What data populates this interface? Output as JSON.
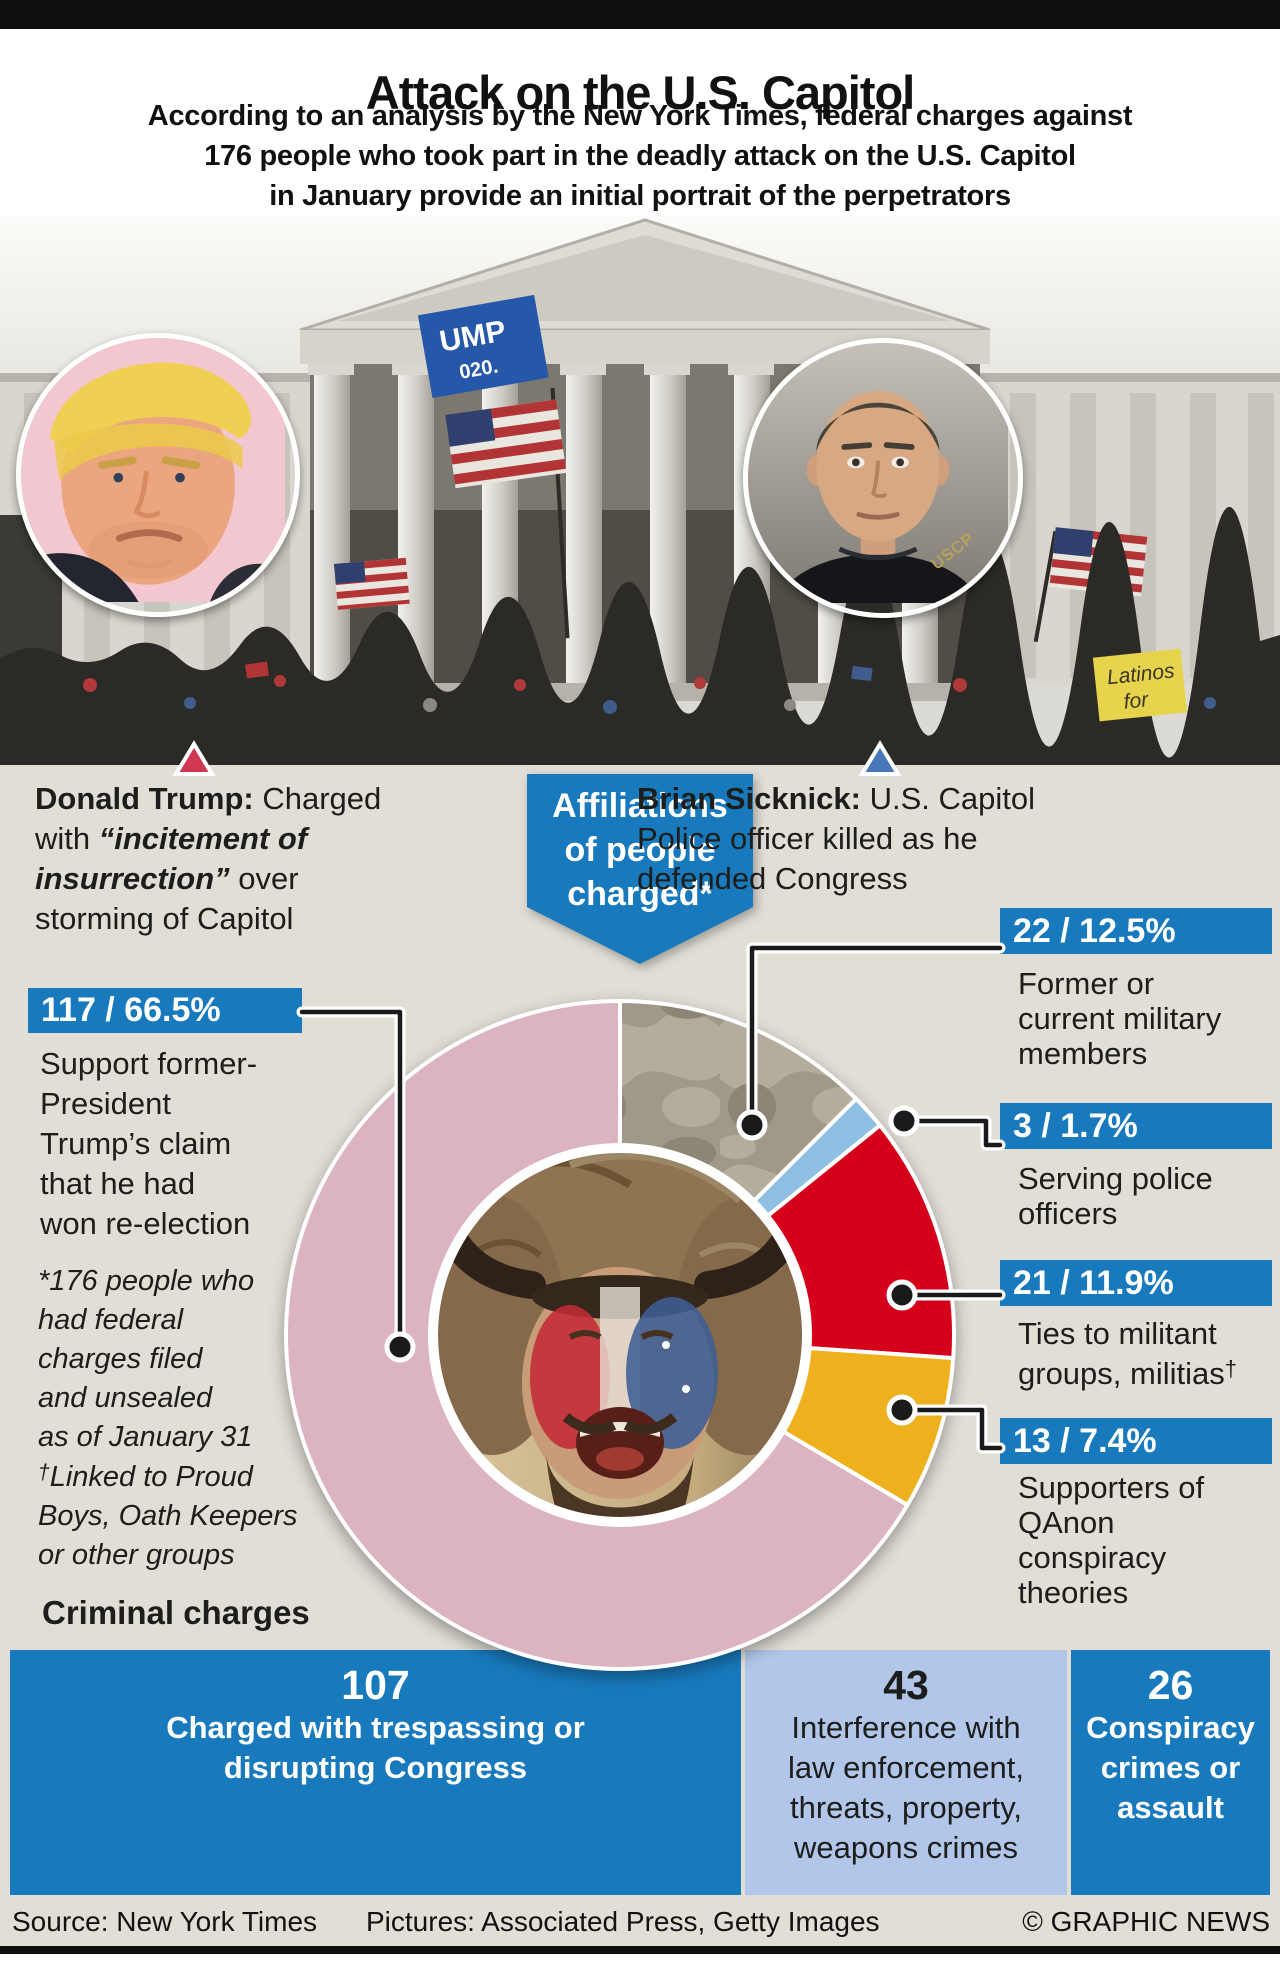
{
  "header": {
    "title": "Attack on the U.S. Capitol",
    "subtitle": "According to an analysis by the New York Times, federal charges against\n176 people who took part in the deadly attack on the U.S. Capitol\nin January provide an initial portrait of the perpetrators"
  },
  "photo": {
    "trump_flag_line1": "UMP",
    "trump_flag_line2": "020.",
    "sign_line1": "Latinos",
    "sign_line2": "for",
    "uscp_badge": "USCP"
  },
  "captions": {
    "trump_name": "Donald Trump:",
    "trump_text1": " Charged\nwith ",
    "trump_quote": "“incitement of\ninsurrection”",
    "trump_text2": " over\nstorming of Capitol",
    "sicknick_name": "Brian Sicknick:",
    "sicknick_text": " U.S. Capitol\nPolice officer killed as he\ndefended Congress"
  },
  "banner": {
    "text": "Affiliations\nof people\ncharged*"
  },
  "chart_data": {
    "type": "pie",
    "title": "Affiliations of people charged*",
    "total_people": 176,
    "legend_position": "around-chart",
    "slices": [
      {
        "id": "military",
        "count": 22,
        "pct": 12.5,
        "value_text": "22 / 12.5%",
        "label": "Former or\ncurrent military\nmembers",
        "color": "camo"
      },
      {
        "id": "police",
        "count": 3,
        "pct": 1.7,
        "value_text": "3 / 1.7%",
        "label": "Serving police\nofficers",
        "color": "#8fc0e4"
      },
      {
        "id": "militant",
        "count": 21,
        "pct": 11.9,
        "value_text": "21 / 11.9%",
        "label": "Ties to militant\ngroups, militias",
        "label_suffix": "†",
        "color": "#d50019"
      },
      {
        "id": "qanon",
        "count": 13,
        "pct": 7.4,
        "value_text": "13 / 7.4%",
        "label": "Supporters of\nQAnon\nconspiracy\ntheories",
        "color": "#eeb01c"
      },
      {
        "id": "trump_support",
        "count": 117,
        "pct": 66.5,
        "value_text": "117 / 66.5%",
        "label": "Support former-\nPresident\nTrump’s claim\nthat he had\nwon re-election",
        "color": "#dcb3c2"
      }
    ]
  },
  "footnotes": {
    "asterisk": "*176 people who\nhad federal\ncharges filed\nand unsealed\nas of January 31",
    "dagger_sym": "†",
    "dagger": "Linked to Proud\nBoys, Oath Keepers\nor other groups"
  },
  "charges": {
    "heading": "Criminal charges",
    "items": [
      {
        "count": "107",
        "label": "Charged with trespassing or\ndisrupting Congress"
      },
      {
        "count": "43",
        "label": "Interference with\nlaw enforcement,\nthreats, property,\nweapons crimes"
      },
      {
        "count": "26",
        "label": "Conspiracy\ncrimes or\nassault"
      }
    ]
  },
  "footer": {
    "source": "Source: New York Times",
    "pictures": "Pictures: Associated Press, Getty Images",
    "credit": "© GRAPHIC NEWS"
  },
  "colors": {
    "accent_blue": "#187abd",
    "light_blue_box": "#b1c6e8",
    "pink_slice": "#dcb3c2",
    "red_slice": "#d50019",
    "yellow_slice": "#eeb01c",
    "police_blue_slice": "#8fc0e4",
    "camo_base": "#a09888",
    "camo_blob": "#b4ad9d",
    "background": "#e1ded6",
    "ink": "#1d1d1b"
  }
}
